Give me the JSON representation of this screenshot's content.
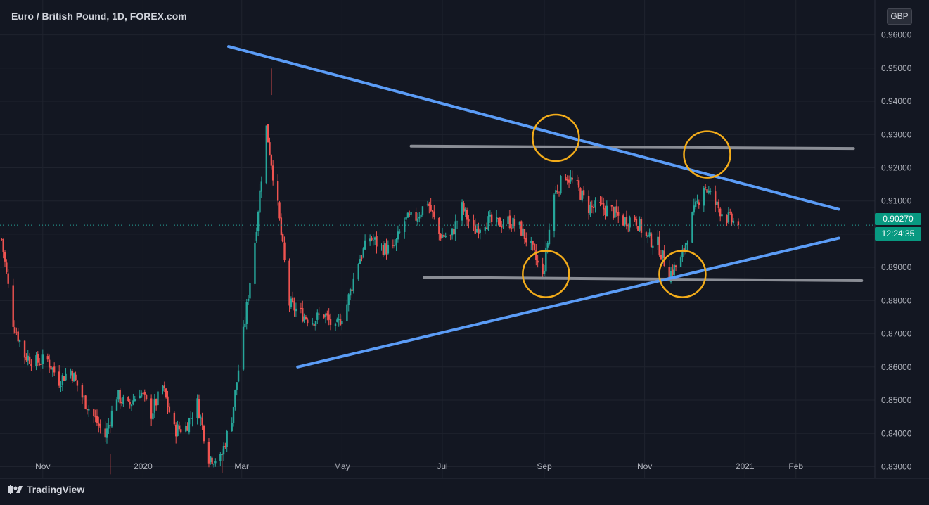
{
  "header": {
    "symbol_title": "Euro / British Pound, 1D, FOREX.com",
    "currency": "GBP"
  },
  "brand": {
    "name": "TradingView"
  },
  "price_tag": {
    "price": "0.90270",
    "countdown": "12:24:35"
  },
  "chart_data": {
    "type": "candlestick",
    "symbol": "EURGBP",
    "timeframe": "1D",
    "y_axis": {
      "ticks": [
        "0.96000",
        "0.95000",
        "0.94000",
        "0.93000",
        "0.92000",
        "0.91000",
        "0.90000",
        "0.89000",
        "0.88000",
        "0.87000",
        "0.86000",
        "0.85000",
        "0.84000",
        "0.83000"
      ],
      "ylim": [
        0.8265,
        0.9705
      ]
    },
    "x_axis": {
      "ticks": [
        {
          "label": "Nov",
          "date": "2019-11-01"
        },
        {
          "label": "2020",
          "date": "2020-01-01"
        },
        {
          "label": "Mar",
          "date": "2020-03-01"
        },
        {
          "label": "May",
          "date": "2020-05-01"
        },
        {
          "label": "Jul",
          "date": "2020-07-01"
        },
        {
          "label": "Sep",
          "date": "2020-09-01"
        },
        {
          "label": "Nov",
          "date": "2020-11-01"
        },
        {
          "label": "2021",
          "date": "2021-01-01"
        },
        {
          "label": "Feb",
          "date": "2021-02-01"
        }
      ],
      "range": [
        "2019-10-06",
        "2021-03-21"
      ]
    },
    "series_close": [
      [
        "2019-10-07",
        0.8985
      ],
      [
        "2019-10-14",
        0.8735
      ],
      [
        "2019-10-21",
        0.8635
      ],
      [
        "2019-10-28",
        0.8615
      ],
      [
        "2019-11-04",
        0.862
      ],
      [
        "2019-11-11",
        0.856
      ],
      [
        "2019-11-18",
        0.859
      ],
      [
        "2019-11-25",
        0.851
      ],
      [
        "2019-12-02",
        0.845
      ],
      [
        "2019-12-09",
        0.839
      ],
      [
        "2019-12-16",
        0.8515
      ],
      [
        "2019-12-23",
        0.848
      ],
      [
        "2019-12-30",
        0.853
      ],
      [
        "2020-01-06",
        0.846
      ],
      [
        "2020-01-13",
        0.854
      ],
      [
        "2020-01-20",
        0.841
      ],
      [
        "2020-01-27",
        0.842
      ],
      [
        "2020-02-03",
        0.849
      ],
      [
        "2020-02-10",
        0.833
      ],
      [
        "2020-02-17",
        0.832
      ],
      [
        "2020-02-24",
        0.845
      ],
      [
        "2020-03-02",
        0.87
      ],
      [
        "2020-03-09",
        0.898
      ],
      [
        "2020-03-16",
        0.932
      ],
      [
        "2020-03-23",
        0.908
      ],
      [
        "2020-03-30",
        0.879
      ],
      [
        "2020-04-06",
        0.876
      ],
      [
        "2020-04-13",
        0.874
      ],
      [
        "2020-04-20",
        0.876
      ],
      [
        "2020-04-27",
        0.871
      ],
      [
        "2020-05-04",
        0.879
      ],
      [
        "2020-05-11",
        0.892
      ],
      [
        "2020-05-18",
        0.899
      ],
      [
        "2020-05-25",
        0.896
      ],
      [
        "2020-06-01",
        0.895
      ],
      [
        "2020-06-08",
        0.904
      ],
      [
        "2020-06-15",
        0.905
      ],
      [
        "2020-06-22",
        0.91
      ],
      [
        "2020-06-29",
        0.9
      ],
      [
        "2020-07-06",
        0.899
      ],
      [
        "2020-07-13",
        0.908
      ],
      [
        "2020-07-20",
        0.901
      ],
      [
        "2020-07-27",
        0.904
      ],
      [
        "2020-08-03",
        0.903
      ],
      [
        "2020-08-10",
        0.904
      ],
      [
        "2020-08-17",
        0.902
      ],
      [
        "2020-08-24",
        0.896
      ],
      [
        "2020-08-31",
        0.887
      ],
      [
        "2020-09-07",
        0.912
      ],
      [
        "2020-09-14",
        0.918
      ],
      [
        "2020-09-21",
        0.914
      ],
      [
        "2020-09-28",
        0.908
      ],
      [
        "2020-10-05",
        0.908
      ],
      [
        "2020-10-12",
        0.907
      ],
      [
        "2020-10-19",
        0.904
      ],
      [
        "2020-10-26",
        0.905
      ],
      [
        "2020-11-02",
        0.899
      ],
      [
        "2020-11-09",
        0.897
      ],
      [
        "2020-11-16",
        0.888
      ],
      [
        "2020-11-23",
        0.892
      ],
      [
        "2020-11-30",
        0.905
      ],
      [
        "2020-12-07",
        0.915
      ],
      [
        "2020-12-14",
        0.909
      ],
      [
        "2020-12-21",
        0.905
      ],
      [
        "2020-12-28",
        0.9027
      ]
    ],
    "low_marks": [
      [
        "2019-12-12",
        0.8277
      ],
      [
        "2020-02-18",
        0.8282
      ]
    ],
    "high_marks": [
      [
        "2020-03-19",
        0.9499
      ]
    ],
    "drawings": {
      "upper_trendline": {
        "color": "#5b9cf6",
        "from": [
          "2020-02-22",
          0.9565
        ],
        "to": [
          "2021-02-27",
          0.9075
        ]
      },
      "lower_trendline": {
        "color": "#5b9cf6",
        "from": [
          "2020-04-04",
          0.86
        ],
        "to": [
          "2021-02-27",
          0.8988
        ]
      },
      "resistance_line": {
        "color": "#8a8d95",
        "from": [
          "2020-06-12",
          0.9265
        ],
        "to": [
          "2021-03-08",
          0.9258
        ]
      },
      "support_line": {
        "color": "#8a8d95",
        "from": [
          "2020-06-20",
          0.887
        ],
        "to": [
          "2021-03-13",
          0.886
        ]
      },
      "circles": {
        "color": "#f3ac1a",
        "points": [
          [
            "2020-09-08",
            0.929
          ],
          [
            "2020-12-09",
            0.924
          ],
          [
            "2020-09-02",
            0.888
          ],
          [
            "2020-11-24",
            0.888
          ]
        ]
      }
    },
    "colors": {
      "up": "#26a69a",
      "down": "#ef5350",
      "background": "#131722",
      "grid": "#1f232e",
      "last_price_line": "#26a69a"
    },
    "last_price": 0.9027,
    "grid": true
  }
}
